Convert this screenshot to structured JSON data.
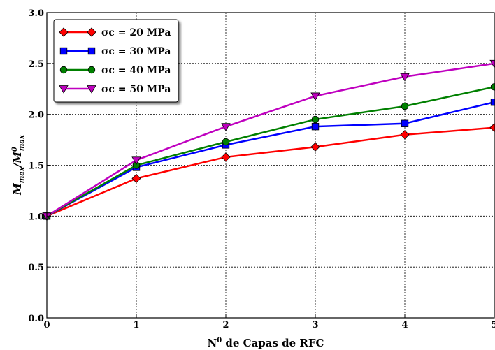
{
  "chart_data": {
    "type": "line",
    "title": "",
    "xlabel": "N0 de Capas de RFC",
    "ylabel": "Mmax/M0max",
    "x": [
      0,
      1,
      2,
      3,
      4,
      5
    ],
    "xlim": [
      0,
      5
    ],
    "ylim": [
      0.0,
      3.0
    ],
    "xticks": [
      "0",
      "1",
      "2",
      "3",
      "4",
      "5"
    ],
    "yticks": [
      "0.0",
      "0.5",
      "1.0",
      "1.5",
      "2.0",
      "2.5",
      "3.0"
    ],
    "grid": true,
    "legend_position": "top-left",
    "series": [
      {
        "name": "σc = 20 MPa",
        "color": "#ff0000",
        "marker": "diamond",
        "values": [
          1.0,
          1.37,
          1.58,
          1.68,
          1.8,
          1.87
        ]
      },
      {
        "name": "σc = 30 MPa",
        "color": "#0000ff",
        "marker": "square",
        "values": [
          1.0,
          1.48,
          1.7,
          1.88,
          1.91,
          2.12
        ]
      },
      {
        "name": "σc = 40 MPa",
        "color": "#008000",
        "marker": "circle",
        "values": [
          1.0,
          1.5,
          1.73,
          1.95,
          2.08,
          2.27
        ]
      },
      {
        "name": "σc = 50 MPa",
        "color": "#bf00bf",
        "marker": "triangle-down",
        "values": [
          1.0,
          1.55,
          1.88,
          2.18,
          2.37,
          2.5
        ]
      }
    ]
  }
}
